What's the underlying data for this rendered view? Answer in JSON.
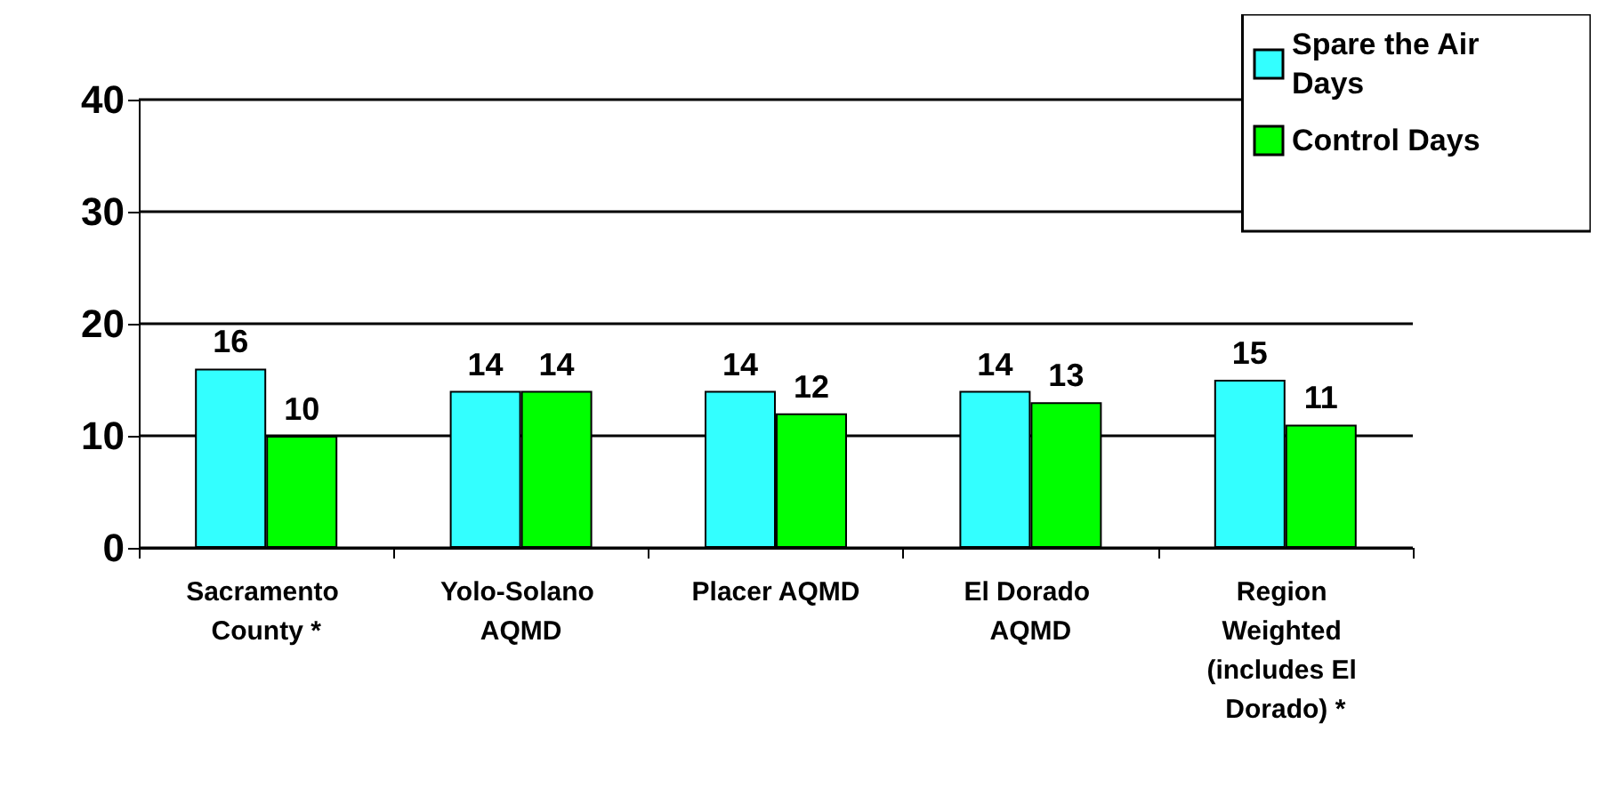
{
  "chart_data": {
    "type": "bar",
    "categories": [
      "Sacramento County *",
      "Yolo-Solano AQMD",
      "Placer AQMD",
      "El Dorado AQMD",
      "Region Weighted (includes El Dorado) *"
    ],
    "series": [
      {
        "name": "Spare the Air Days",
        "color": "#33ffff",
        "values": [
          16,
          14,
          14,
          14,
          15
        ]
      },
      {
        "name": "Control Days",
        "color": "#00ff00",
        "values": [
          10,
          14,
          12,
          13,
          11
        ]
      }
    ],
    "ylim": [
      0,
      40
    ],
    "yticks": [
      0,
      10,
      20,
      30,
      40
    ],
    "grid": "y",
    "legend": "top right",
    "data_labels": true
  }
}
